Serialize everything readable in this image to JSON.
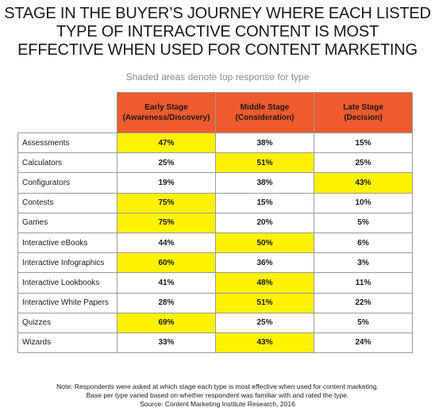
{
  "chart_data": {
    "type": "table",
    "title_lines": [
      "STAGE IN THE BUYER’S JOURNEY WHERE EACH LISTED",
      "TYPE OF INTERACTIVE CONTENT IS MOST",
      "EFFECTIVE WHEN USED FOR CONTENT MARKETING"
    ],
    "subtitle": "Shaded areas denote top response for type",
    "columns": [
      {
        "line1": "Early Stage",
        "line2": "(Awareness/Discovery)"
      },
      {
        "line1": "Middle Stage",
        "line2": "(Consideration)"
      },
      {
        "line1": "Late Stage",
        "line2": "(Decision)"
      }
    ],
    "rows": [
      {
        "type": "Assessments",
        "values": [
          "47%",
          "38%",
          "15%"
        ],
        "top": 0
      },
      {
        "type": "Calculators",
        "values": [
          "25%",
          "51%",
          "25%"
        ],
        "top": 1
      },
      {
        "type": "Configurators",
        "values": [
          "19%",
          "38%",
          "43%"
        ],
        "top": 2
      },
      {
        "type": "Contests",
        "values": [
          "75%",
          "15%",
          "10%"
        ],
        "top": 0
      },
      {
        "type": "Games",
        "values": [
          "75%",
          "20%",
          "5%"
        ],
        "top": 0
      },
      {
        "type": "Interactive eBooks",
        "values": [
          "44%",
          "50%",
          "6%"
        ],
        "top": 1
      },
      {
        "type": "Interactive Infographics",
        "values": [
          "60%",
          "36%",
          "3%"
        ],
        "top": 0
      },
      {
        "type": "Interactive Lookbooks",
        "values": [
          "41%",
          "48%",
          "11%"
        ],
        "top": 1
      },
      {
        "type": "Interactive White Papers",
        "values": [
          "28%",
          "51%",
          "22%"
        ],
        "top": 1
      },
      {
        "type": "Quizzes",
        "values": [
          "69%",
          "25%",
          "5%"
        ],
        "top": 0
      },
      {
        "type": "Wizards",
        "values": [
          "33%",
          "43%",
          "24%"
        ],
        "top": 1
      }
    ],
    "note_lines": [
      "Note: Respondents were asked at which stage each type is most effective when used for content marketing.",
      "Base per type varied based on whether respondent was familiar with and rated the type.",
      "Source: Content Marketing Institute Research, 2016"
    ]
  },
  "colors": {
    "header": "#ef5a2e",
    "highlight": "#fff200",
    "border": "#9a9a9a",
    "subtitle": "#8a8a8a"
  }
}
